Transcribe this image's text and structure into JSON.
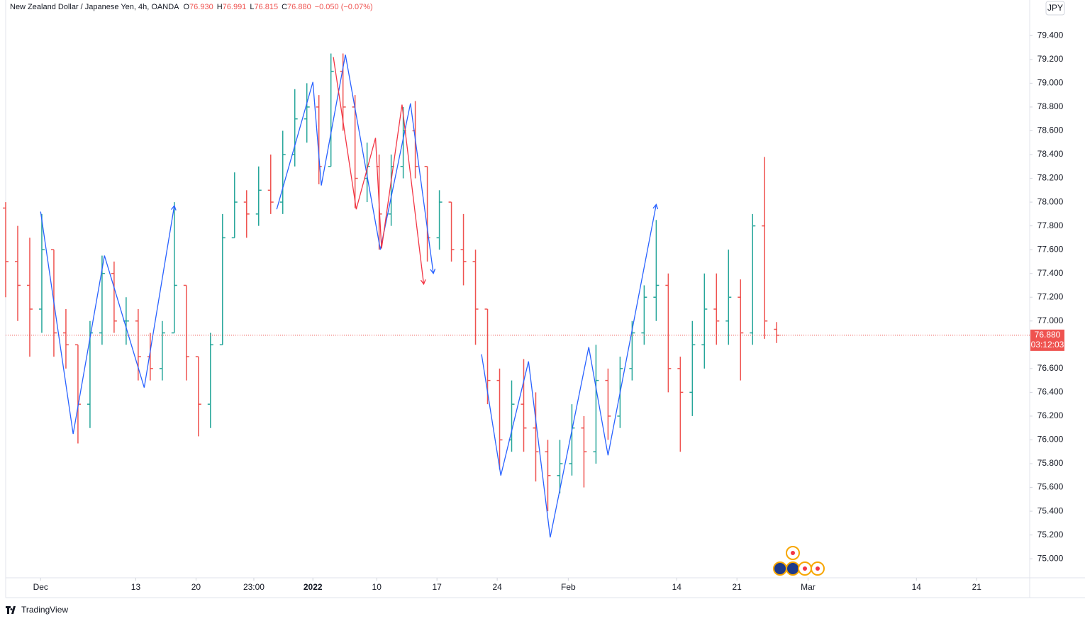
{
  "chart_data": {
    "type": "ohlc",
    "title": "New Zealand Dollar / Japanese Yen, 4h, OANDA",
    "header_values": [
      {
        "key": "O",
        "text": "76.930"
      },
      {
        "key": "H",
        "text": "76.991"
      },
      {
        "key": "L",
        "text": "76.815"
      },
      {
        "key": "C",
        "text": "76.880"
      }
    ],
    "change_text": "−0.050 (−0.07%)",
    "currency": "JPY",
    "brand": "TradingView",
    "up_color": "#26a69a",
    "down_color": "#ef5350",
    "grid": false,
    "xlim": [
      0,
      85
    ],
    "ylim": [
      74.84,
      79.7
    ],
    "xticks": [
      {
        "value": 2.9,
        "label": "Dec"
      },
      {
        "value": 10.8,
        "label": "13"
      },
      {
        "value": 15.8,
        "label": "20"
      },
      {
        "value": 20.6,
        "label": "23:00"
      },
      {
        "value": 25.5,
        "label": "2022"
      },
      {
        "value": 30.8,
        "label": "10"
      },
      {
        "value": 35.8,
        "label": "17"
      },
      {
        "value": 40.8,
        "label": "24"
      },
      {
        "value": 46.7,
        "label": "Feb"
      },
      {
        "value": 55.7,
        "label": "14"
      },
      {
        "value": 60.7,
        "label": "21"
      },
      {
        "value": 66.6,
        "label": "Mar"
      },
      {
        "value": 75.6,
        "label": "14"
      },
      {
        "value": 80.6,
        "label": "21"
      }
    ],
    "yticks": [
      {
        "value": 75.0,
        "label": "75.000"
      },
      {
        "value": 75.2,
        "label": "75.200"
      },
      {
        "value": 75.4,
        "label": "75.400"
      },
      {
        "value": 75.6,
        "label": "75.600"
      },
      {
        "value": 75.8,
        "label": "75.800"
      },
      {
        "value": 76.0,
        "label": "76.000"
      },
      {
        "value": 76.2,
        "label": "76.200"
      },
      {
        "value": 76.4,
        "label": "76.400"
      },
      {
        "value": 76.6,
        "label": "76.600"
      },
      {
        "value": 77.0,
        "label": "77.000"
      },
      {
        "value": 77.2,
        "label": "77.200"
      },
      {
        "value": 77.4,
        "label": "77.400"
      },
      {
        "value": 77.6,
        "label": "77.600"
      },
      {
        "value": 77.8,
        "label": "77.800"
      },
      {
        "value": 78.0,
        "label": "78.000"
      },
      {
        "value": 78.2,
        "label": "78.200"
      },
      {
        "value": 78.4,
        "label": "78.400"
      },
      {
        "value": 78.6,
        "label": "78.600"
      },
      {
        "value": 78.8,
        "label": "78.800"
      },
      {
        "value": 79.0,
        "label": "79.000"
      },
      {
        "value": 79.2,
        "label": "79.200"
      },
      {
        "value": 79.4,
        "label": "79.400"
      }
    ],
    "bars": {
      "x": [
        0,
        1,
        2,
        3,
        4,
        5,
        6,
        7,
        8,
        9,
        10,
        11,
        12,
        13,
        14,
        15,
        16,
        17,
        18,
        19,
        20,
        21,
        22,
        23,
        24,
        25,
        26,
        27,
        28,
        29,
        30,
        31,
        32,
        33,
        34,
        35,
        36,
        37,
        38,
        39,
        40,
        41,
        42,
        43,
        44,
        45,
        46,
        47,
        48,
        49,
        50,
        51,
        52,
        53,
        54,
        55,
        56,
        57,
        58,
        59,
        60,
        61,
        62,
        63,
        64
      ],
      "open": [
        77.95,
        77.5,
        77.3,
        77.1,
        77.6,
        76.9,
        76.8,
        76.3,
        76.9,
        77.4,
        77.0,
        77.0,
        76.7,
        76.6,
        76.9,
        77.3,
        76.7,
        76.3,
        76.8,
        77.7,
        78.0,
        77.9,
        78.1,
        78.0,
        78.4,
        78.7,
        78.8,
        78.3,
        79.1,
        78.8,
        78.2,
        78.3,
        77.9,
        78.3,
        78.6,
        78.3,
        77.7,
        78.0,
        77.6,
        77.5,
        77.1,
        76.5,
        76.0,
        76.3,
        76.1,
        75.9,
        75.7,
        75.8,
        76.1,
        75.9,
        76.5,
        76.2,
        76.6,
        76.9,
        77.2,
        77.3,
        76.6,
        76.4,
        76.8,
        77.1,
        77.0,
        77.2,
        76.9,
        77.8,
        76.93
      ],
      "high": [
        78.0,
        77.8,
        77.7,
        77.9,
        77.6,
        77.1,
        76.8,
        77.0,
        77.55,
        77.5,
        77.2,
        77.1,
        76.9,
        77.0,
        78.0,
        77.3,
        76.7,
        76.9,
        77.9,
        78.25,
        78.1,
        78.3,
        78.4,
        78.6,
        78.95,
        79.0,
        78.9,
        79.25,
        79.25,
        78.9,
        78.5,
        78.4,
        78.4,
        78.8,
        78.85,
        78.3,
        78.1,
        78.0,
        77.9,
        77.6,
        77.1,
        76.6,
        76.5,
        76.68,
        76.4,
        76.0,
        76.0,
        76.3,
        76.2,
        76.8,
        76.6,
        76.7,
        77.0,
        77.3,
        77.85,
        77.4,
        76.7,
        77.0,
        77.4,
        77.4,
        77.6,
        77.35,
        77.9,
        78.38,
        76.991
      ],
      "low": [
        77.2,
        77.0,
        76.7,
        76.9,
        76.7,
        76.6,
        75.97,
        76.1,
        76.8,
        76.9,
        76.8,
        76.5,
        76.5,
        76.5,
        76.9,
        76.5,
        76.03,
        76.1,
        76.8,
        77.7,
        77.7,
        77.8,
        77.9,
        77.9,
        78.3,
        78.5,
        78.15,
        78.3,
        78.6,
        77.95,
        78.0,
        77.6,
        77.8,
        78.2,
        78.2,
        77.5,
        77.6,
        77.5,
        77.3,
        76.8,
        76.3,
        75.75,
        75.9,
        75.9,
        75.65,
        75.4,
        75.55,
        75.7,
        75.6,
        75.8,
        76.0,
        76.1,
        76.5,
        76.8,
        77.0,
        76.4,
        75.9,
        76.2,
        76.6,
        76.8,
        76.8,
        76.5,
        76.8,
        76.85,
        76.815
      ],
      "close": [
        77.5,
        77.3,
        77.1,
        77.6,
        76.9,
        76.8,
        76.3,
        76.9,
        77.4,
        77.0,
        77.0,
        76.7,
        76.6,
        76.9,
        77.3,
        76.7,
        76.3,
        76.8,
        77.7,
        78.0,
        77.9,
        78.1,
        78.0,
        78.4,
        78.7,
        78.8,
        78.3,
        79.1,
        78.8,
        78.2,
        78.3,
        77.9,
        78.3,
        78.6,
        78.3,
        77.7,
        78.0,
        77.6,
        77.5,
        77.1,
        76.5,
        76.0,
        76.3,
        76.1,
        75.9,
        75.7,
        75.8,
        76.1,
        75.9,
        76.5,
        76.2,
        76.6,
        76.9,
        77.2,
        77.3,
        76.6,
        76.4,
        76.8,
        77.1,
        77.0,
        77.2,
        76.9,
        77.8,
        77.0,
        76.88
      ]
    },
    "zigzags": [
      {
        "color": "#2962ff",
        "x": [
          2.9,
          5.6,
          8.2,
          11.5,
          14.0
        ],
        "y": [
          77.92,
          76.05,
          77.55,
          76.44,
          77.97
        ]
      },
      {
        "color": "#2962ff",
        "x": [
          22.5,
          25.5,
          26.2,
          28.2,
          31.1,
          33.6,
          35.5
        ],
        "y": [
          77.94,
          79.01,
          78.14,
          79.24,
          77.6,
          78.83,
          77.4
        ]
      },
      {
        "color": "#f23645",
        "x": [
          27.2,
          29.1,
          30.7,
          31.2,
          32.9,
          34.7
        ],
        "y": [
          79.22,
          77.94,
          78.54,
          77.61,
          78.82,
          77.31
        ]
      },
      {
        "color": "#2962ff",
        "x": [
          39.5,
          41.1,
          43.4,
          45.2,
          48.4,
          50.0,
          54.0
        ],
        "y": [
          76.72,
          75.7,
          76.66,
          75.18,
          76.78,
          75.87,
          77.98
        ]
      }
    ],
    "last_price": 76.88,
    "last_price_label": "76.880",
    "countdown": "03:12:03"
  }
}
